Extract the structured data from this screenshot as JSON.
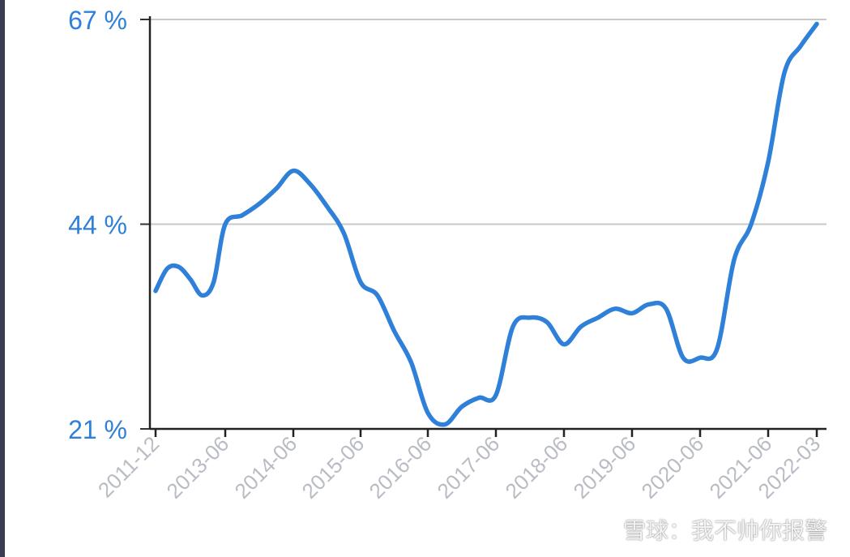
{
  "chart_data": {
    "type": "line",
    "title": "",
    "xlabel": "",
    "ylabel": "",
    "ylim": [
      21,
      67
    ],
    "y_ticks": [
      "21 %",
      "44 %",
      "67 %"
    ],
    "x_ticks": [
      "2011-12",
      "2013-06",
      "2014-06",
      "2015-06",
      "2016-06",
      "2017-06",
      "2018-06",
      "2019-06",
      "2020-06",
      "2021-06",
      "2022-03"
    ],
    "grid": true,
    "series": [
      {
        "color": "#2f80d8",
        "points": [
          [
            "2011-12",
            36.5
          ],
          [
            "2012-03",
            39.0
          ],
          [
            "2012-06",
            39.2
          ],
          [
            "2012-09",
            37.8
          ],
          [
            "2012-12",
            36.0
          ],
          [
            "2013-03",
            37.5
          ],
          [
            "2013-06",
            44.0
          ],
          [
            "2013-09",
            45.0
          ],
          [
            "2013-12",
            46.3
          ],
          [
            "2014-03",
            48.0
          ],
          [
            "2014-06",
            50.0
          ],
          [
            "2014-09",
            48.5
          ],
          [
            "2014-12",
            46.0
          ],
          [
            "2015-03",
            43.0
          ],
          [
            "2015-06",
            37.5
          ],
          [
            "2015-09",
            36.0
          ],
          [
            "2015-12",
            32.0
          ],
          [
            "2016-03",
            28.5
          ],
          [
            "2016-06",
            22.8
          ],
          [
            "2016-09",
            21.5
          ],
          [
            "2016-12",
            23.5
          ],
          [
            "2017-03",
            24.5
          ],
          [
            "2017-06",
            24.8
          ],
          [
            "2017-09",
            32.5
          ],
          [
            "2017-12",
            33.5
          ],
          [
            "2018-03",
            33.0
          ],
          [
            "2018-06",
            30.5
          ],
          [
            "2018-09",
            32.5
          ],
          [
            "2018-12",
            33.5
          ],
          [
            "2019-03",
            34.5
          ],
          [
            "2019-06",
            34.0
          ],
          [
            "2019-09",
            35.0
          ],
          [
            "2019-12",
            34.5
          ],
          [
            "2020-03",
            29.0
          ],
          [
            "2020-06",
            29.0
          ],
          [
            "2020-09",
            30.0
          ],
          [
            "2020-12",
            40.0
          ],
          [
            "2021-03",
            44.0
          ],
          [
            "2021-06",
            51.0
          ],
          [
            "2021-09",
            61.0
          ],
          [
            "2021-12",
            64.0
          ],
          [
            "2022-03",
            66.5
          ]
        ]
      }
    ]
  },
  "watermark": {
    "brand": "雪球：我不帅你报警",
    "logo_icon": "snowball-logo-icon"
  }
}
